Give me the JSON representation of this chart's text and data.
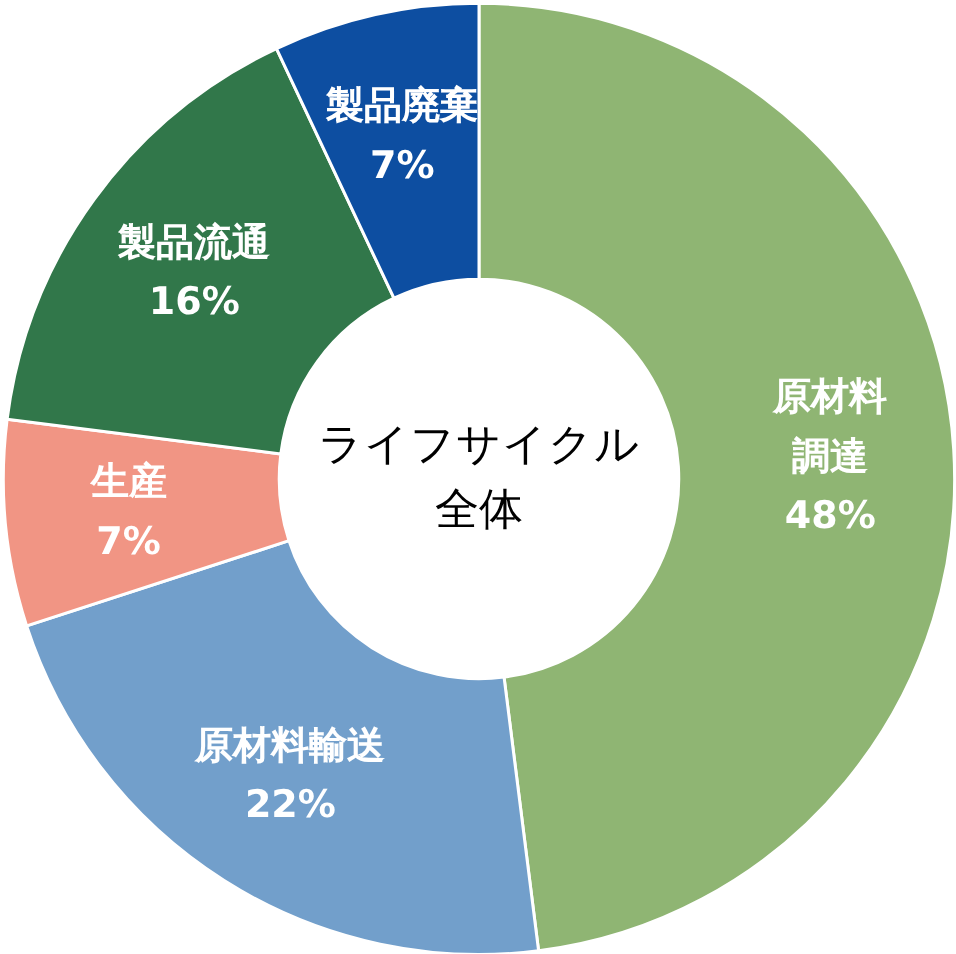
{
  "chart_data": {
    "type": "donut",
    "categories": [
      "原材料調達",
      "原材料輸送",
      "生産",
      "製品流通",
      "製品廃棄"
    ],
    "values": [
      48,
      22,
      7,
      16,
      7
    ],
    "value_labels": [
      "48%",
      "22%",
      "7%",
      "16%",
      "7%"
    ],
    "colors": [
      "#8fb573",
      "#729fcb",
      "#f19584",
      "#31774a",
      "#0d4ea1"
    ],
    "annotations": [
      "ライフサイクル全体"
    ]
  }
}
